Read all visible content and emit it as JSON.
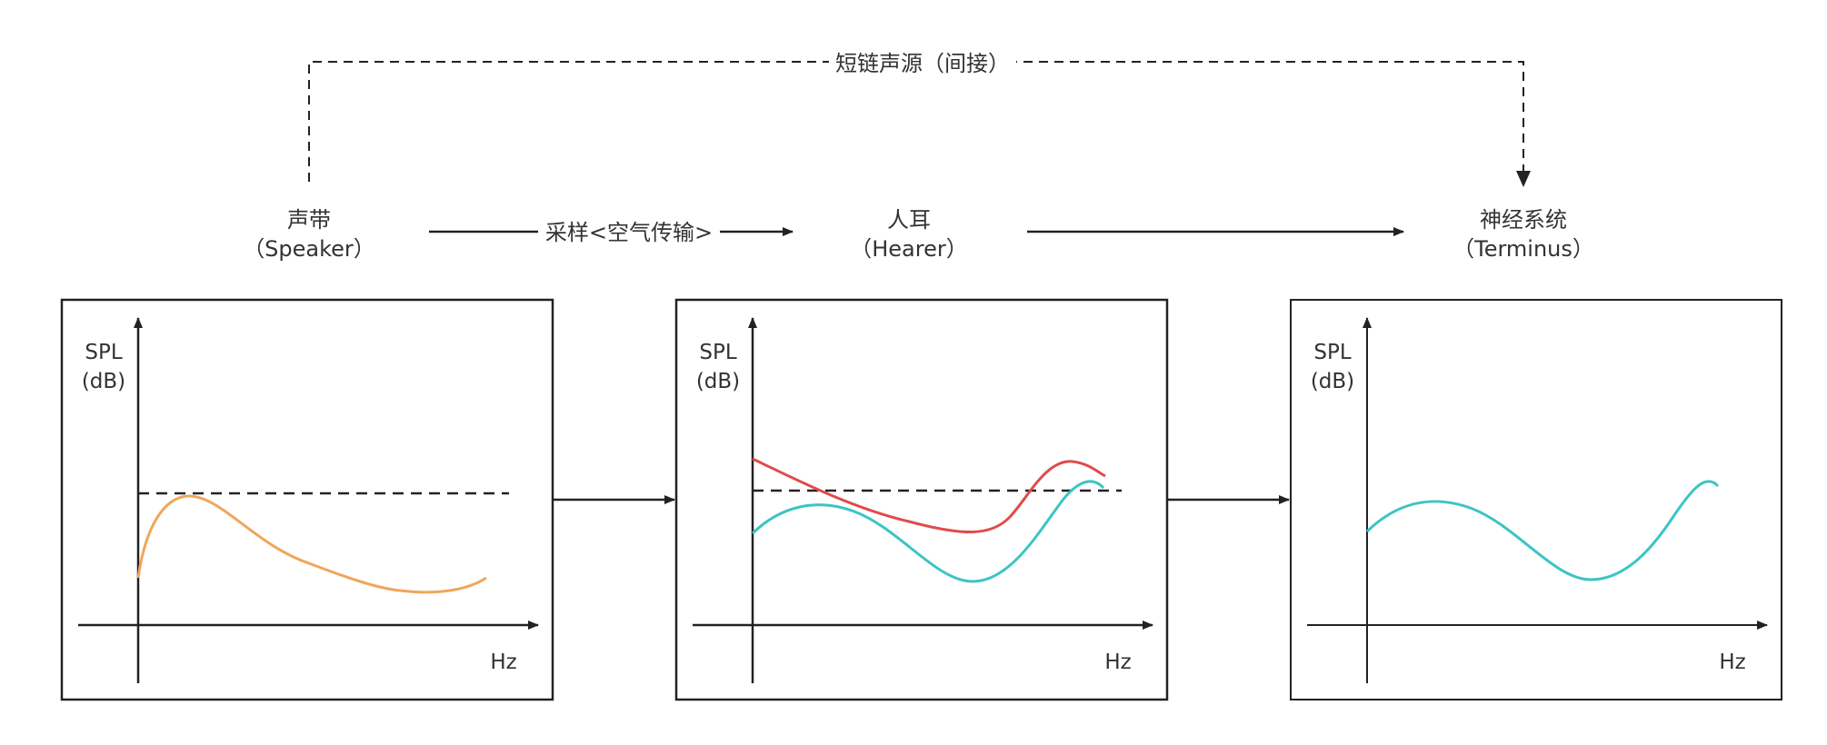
{
  "colors": {
    "line": "#222222",
    "text": "#333333",
    "speaker_curve": "#f0a65c",
    "ear_curve": "#e04b4b",
    "signal_curve": "#3cc4c4"
  },
  "nodes": {
    "speaker": {
      "name": "声带",
      "sub": "（Speaker）"
    },
    "hearer": {
      "name": "人耳",
      "sub": "（Hearer）"
    },
    "terminus": {
      "name": "神经系统",
      "sub": "（Terminus）"
    }
  },
  "edges": {
    "indirect": "短链声源（间接）",
    "sampling": "采样<空气传输>"
  },
  "panels": [
    {
      "y_label_1": "SPL",
      "y_label_2": "(dB)",
      "x_label": "Hz"
    },
    {
      "y_label_1": "SPL",
      "y_label_2": "(dB)",
      "x_label": "Hz"
    },
    {
      "y_label_1": "SPL",
      "y_label_2": "(dB)",
      "x_label": "Hz"
    }
  ]
}
